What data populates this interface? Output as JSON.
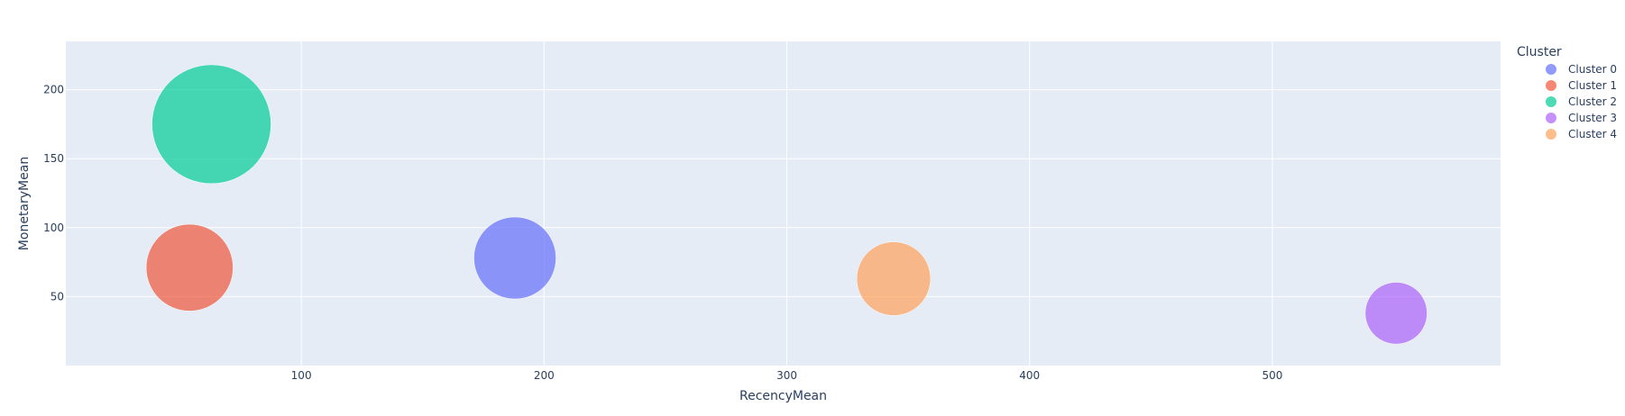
{
  "chart_data": {
    "type": "scatter",
    "xlabel": "RecencyMean",
    "ylabel": "MonetaryMean",
    "xlim": [
      3,
      594
    ],
    "ylim": [
      0,
      235
    ],
    "x_ticks": [
      100,
      200,
      300,
      400,
      500
    ],
    "y_ticks": [
      50,
      100,
      150,
      200
    ],
    "grid": true,
    "legend": {
      "title": "Cluster",
      "placement": "top-right"
    },
    "series": [
      {
        "name": "Cluster 0",
        "x": 188,
        "y": 78,
        "size": 0.69,
        "color": "#636efa"
      },
      {
        "name": "Cluster 1",
        "x": 54,
        "y": 71,
        "size": 0.73,
        "color": "#EF553B"
      },
      {
        "name": "Cluster 2",
        "x": 63,
        "y": 175,
        "size": 1.0,
        "color": "#00cc96"
      },
      {
        "name": "Cluster 3",
        "x": 551,
        "y": 38,
        "size": 0.52,
        "color": "#ab63fa"
      },
      {
        "name": "Cluster 4",
        "x": 344,
        "y": 63,
        "size": 0.62,
        "color": "#FFA15A"
      }
    ]
  }
}
